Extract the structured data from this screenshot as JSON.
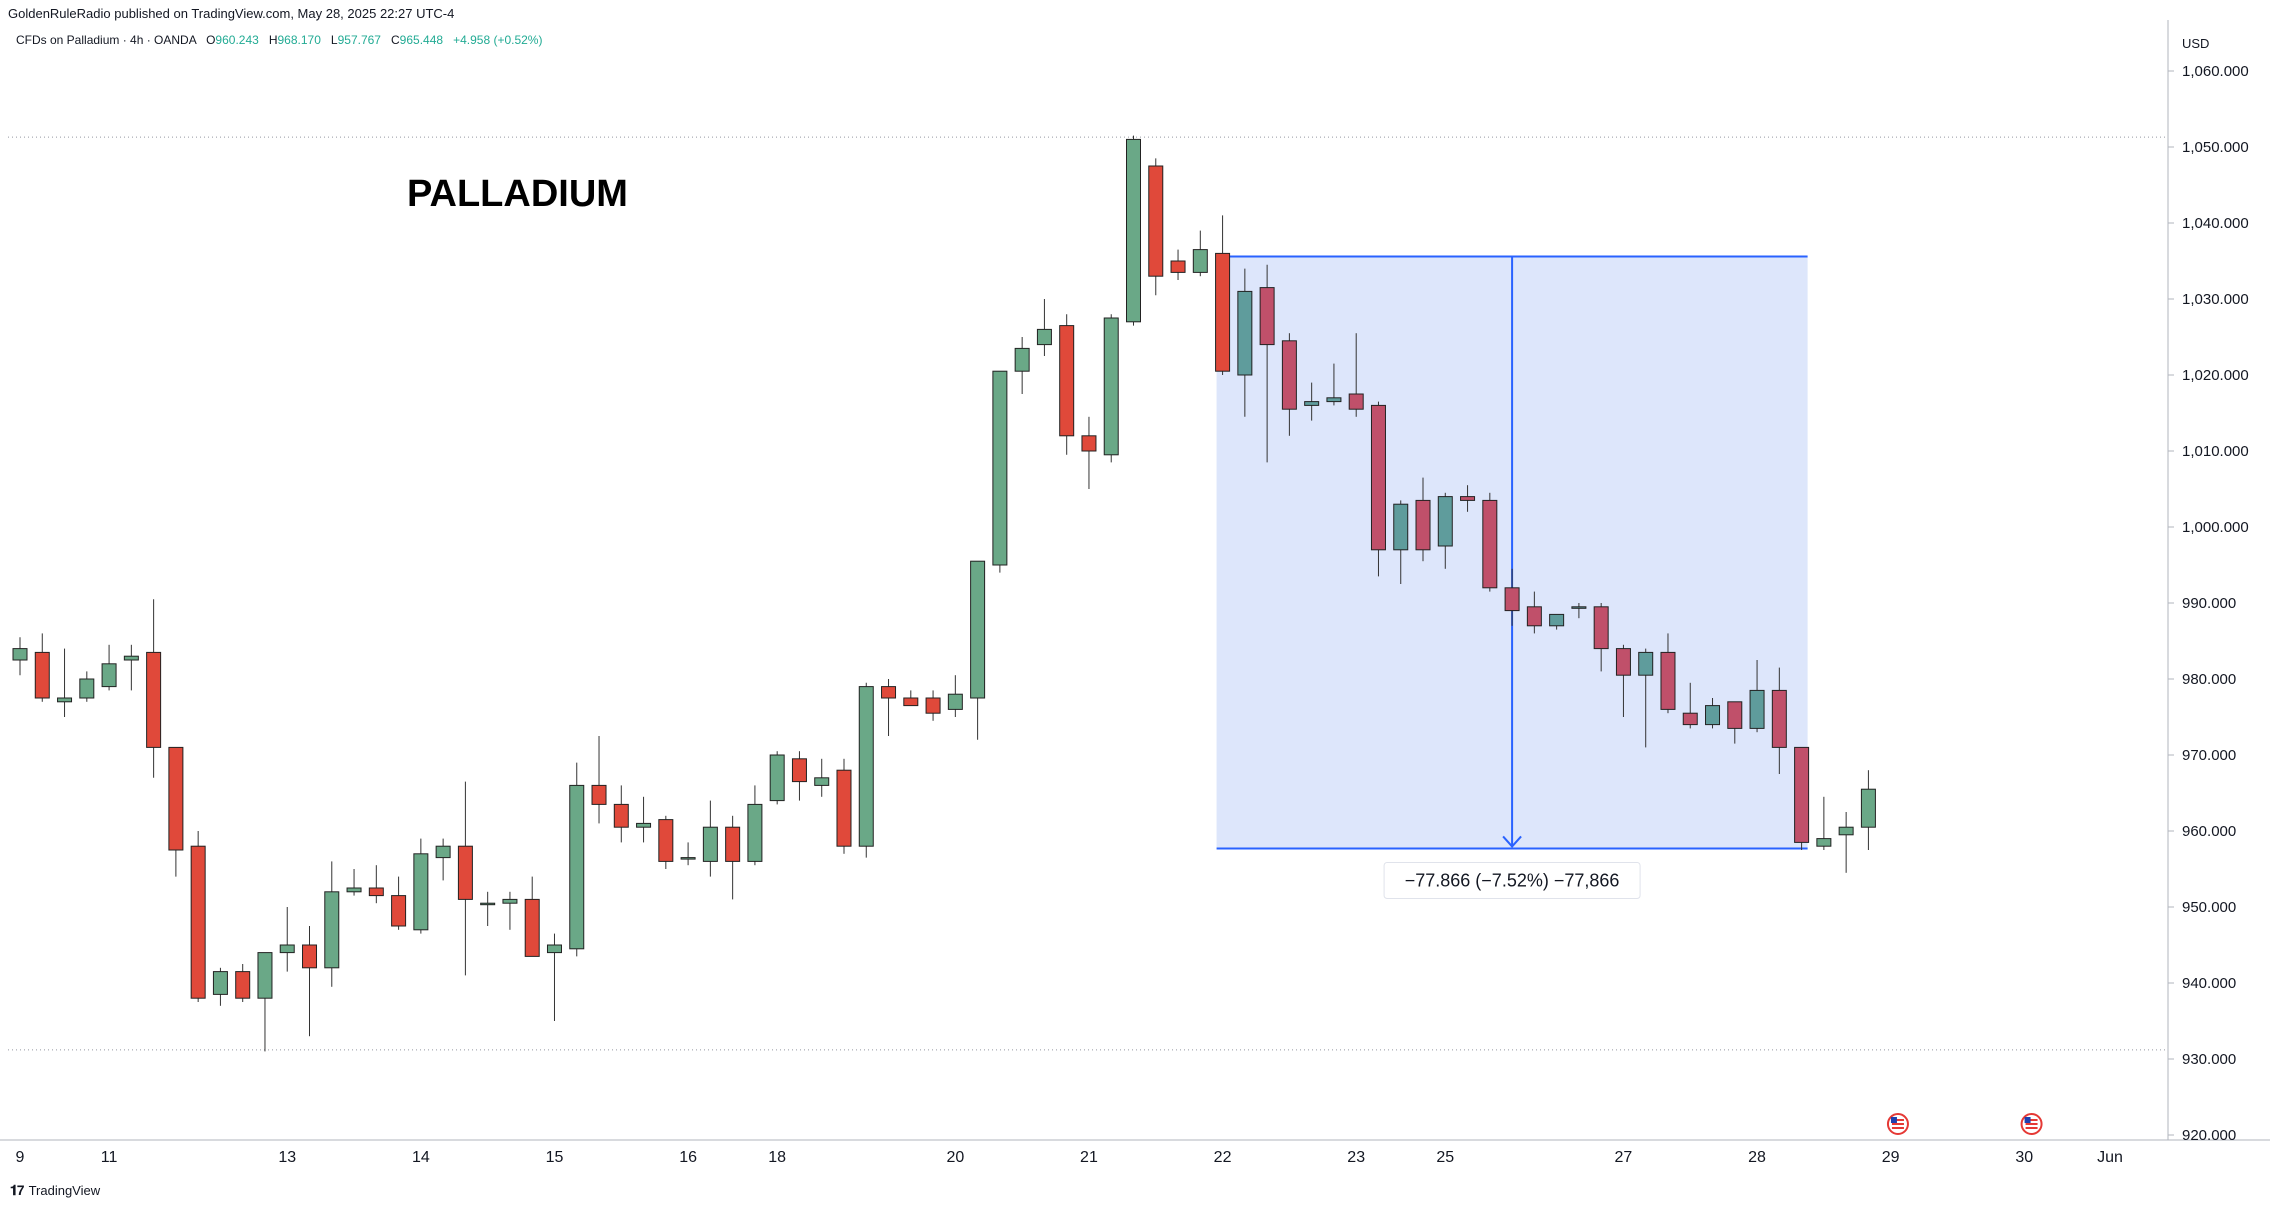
{
  "header": {
    "publisher_line": "GoldenRuleRadio published on TradingView.com, May 28, 2025 22:27 UTC-4"
  },
  "legend": {
    "symbol": "CFDs on Palladium · 4h · OANDA",
    "open_label": "O",
    "open": "960.243",
    "high_label": "H",
    "high": "968.170",
    "low_label": "L",
    "low": "957.767",
    "close_label": "C",
    "close": "965.448",
    "change": "+4.958 (+0.52%)"
  },
  "footer": {
    "logo": "𝟏7",
    "brand": "TradingView"
  },
  "colors": {
    "up": "#6aa887",
    "down": "#e0493a",
    "down_dark": "#c0506a",
    "up_teal": "#5f9c9c",
    "measure": "#2962ff",
    "measure_fill": "#dde6fb"
  },
  "chart_data": {
    "type": "candlestick",
    "title": "PALLADIUM",
    "currency": "USD",
    "ylim": [
      918.5,
      1065
    ],
    "y_ticks": [
      "1,060.000",
      "1,050.000",
      "1,040.000",
      "1,030.000",
      "1,020.000",
      "1,010.000",
      "1,000.000",
      "990.000",
      "980.000",
      "970.000",
      "960.000",
      "950.000",
      "940.000",
      "930.000",
      "920.000"
    ],
    "y_tick_values": [
      1060,
      1050,
      1040,
      1030,
      1020,
      1010,
      1000,
      990,
      980,
      970,
      960,
      950,
      940,
      930,
      920
    ],
    "x_tick_labels": [
      "9",
      "11",
      "13",
      "14",
      "15",
      "16",
      "18",
      "20",
      "21",
      "22",
      "23",
      "25",
      "27",
      "28",
      "29",
      "30",
      "Jun"
    ],
    "x_tick_bar_index": [
      0,
      4,
      12,
      18,
      24,
      30,
      34,
      42,
      48,
      54,
      60,
      64,
      72,
      78,
      84,
      90,
      96
    ],
    "horizontal_levels": [
      1051.3,
      931.2
    ],
    "candles": [
      {
        "o": 982.5,
        "h": 985.5,
        "l": 980.5,
        "c": 984.0
      },
      {
        "o": 983.5,
        "h": 986.0,
        "l": 977.0,
        "c": 977.5
      },
      {
        "o": 977.0,
        "h": 984.0,
        "l": 975.0,
        "c": 977.5
      },
      {
        "o": 977.5,
        "h": 981.0,
        "l": 977.0,
        "c": 980.0
      },
      {
        "o": 979.0,
        "h": 984.5,
        "l": 978.5,
        "c": 982.0
      },
      {
        "o": 982.5,
        "h": 984.5,
        "l": 978.5,
        "c": 983.0
      },
      {
        "o": 983.5,
        "h": 990.5,
        "l": 967.0,
        "c": 971.0
      },
      {
        "o": 971.0,
        "h": 971.0,
        "l": 954.0,
        "c": 957.5
      },
      {
        "o": 958.0,
        "h": 960.0,
        "l": 937.5,
        "c": 938.0
      },
      {
        "o": 938.5,
        "h": 942.0,
        "l": 937.0,
        "c": 941.5
      },
      {
        "o": 941.5,
        "h": 942.5,
        "l": 937.5,
        "c": 938.0
      },
      {
        "o": 938.0,
        "h": 944.0,
        "l": 931.0,
        "c": 944.0
      },
      {
        "o": 944.0,
        "h": 950.0,
        "l": 941.5,
        "c": 945.0
      },
      {
        "o": 945.0,
        "h": 947.5,
        "l": 933.0,
        "c": 942.0
      },
      {
        "o": 942.0,
        "h": 956.0,
        "l": 939.5,
        "c": 952.0
      },
      {
        "o": 952.0,
        "h": 955.0,
        "l": 951.5,
        "c": 952.5
      },
      {
        "o": 952.5,
        "h": 955.5,
        "l": 950.5,
        "c": 951.5
      },
      {
        "o": 951.5,
        "h": 954.0,
        "l": 947.0,
        "c": 947.5
      },
      {
        "o": 947.0,
        "h": 959.0,
        "l": 946.5,
        "c": 957.0
      },
      {
        "o": 956.5,
        "h": 959.0,
        "l": 953.5,
        "c": 958.0
      },
      {
        "o": 958.0,
        "h": 966.5,
        "l": 941.0,
        "c": 951.0
      },
      {
        "o": 950.5,
        "h": 952.0,
        "l": 947.5,
        "c": 950.5
      },
      {
        "o": 950.5,
        "h": 952.0,
        "l": 947.0,
        "c": 951.0
      },
      {
        "o": 951.0,
        "h": 954.0,
        "l": 943.5,
        "c": 943.5
      },
      {
        "o": 944.0,
        "h": 946.5,
        "l": 935.0,
        "c": 945.0
      },
      {
        "o": 944.5,
        "h": 969.0,
        "l": 943.5,
        "c": 966.0
      },
      {
        "o": 966.0,
        "h": 972.5,
        "l": 961.0,
        "c": 963.5
      },
      {
        "o": 963.5,
        "h": 966.0,
        "l": 958.5,
        "c": 960.5
      },
      {
        "o": 960.5,
        "h": 964.5,
        "l": 958.5,
        "c": 961.0
      },
      {
        "o": 961.5,
        "h": 962.0,
        "l": 955.0,
        "c": 956.0
      },
      {
        "o": 956.5,
        "h": 958.5,
        "l": 955.5,
        "c": 956.5
      },
      {
        "o": 956.0,
        "h": 964.0,
        "l": 954.0,
        "c": 960.5
      },
      {
        "o": 960.5,
        "h": 962.0,
        "l": 951.0,
        "c": 956.0
      },
      {
        "o": 956.0,
        "h": 966.0,
        "l": 955.5,
        "c": 963.5
      },
      {
        "o": 964.0,
        "h": 970.5,
        "l": 963.5,
        "c": 970.0
      },
      {
        "o": 969.5,
        "h": 970.5,
        "l": 964.0,
        "c": 966.5
      },
      {
        "o": 966.0,
        "h": 969.5,
        "l": 964.5,
        "c": 967.0
      },
      {
        "o": 968.0,
        "h": 969.5,
        "l": 957.0,
        "c": 958.0
      },
      {
        "o": 958.0,
        "h": 979.5,
        "l": 956.5,
        "c": 979.0
      },
      {
        "o": 979.0,
        "h": 980.0,
        "l": 972.5,
        "c": 977.5
      },
      {
        "o": 977.5,
        "h": 978.5,
        "l": 976.5,
        "c": 976.5
      },
      {
        "o": 977.5,
        "h": 978.5,
        "l": 974.5,
        "c": 975.5
      },
      {
        "o": 976.0,
        "h": 980.5,
        "l": 975.0,
        "c": 978.0
      },
      {
        "o": 977.5,
        "h": 995.0,
        "l": 972.0,
        "c": 995.5
      },
      {
        "o": 995.0,
        "h": 1019.5,
        "l": 994.0,
        "c": 1020.5
      },
      {
        "o": 1020.5,
        "h": 1025.0,
        "l": 1017.5,
        "c": 1023.5
      },
      {
        "o": 1024.0,
        "h": 1030.0,
        "l": 1022.5,
        "c": 1026.0
      },
      {
        "o": 1026.5,
        "h": 1028.0,
        "l": 1009.5,
        "c": 1012.0
      },
      {
        "o": 1012.0,
        "h": 1014.5,
        "l": 1005.0,
        "c": 1010.0
      },
      {
        "o": 1009.5,
        "h": 1028.0,
        "l": 1008.5,
        "c": 1027.5
      },
      {
        "o": 1027.0,
        "h": 1051.5,
        "l": 1026.5,
        "c": 1051.0
      },
      {
        "o": 1047.5,
        "h": 1048.5,
        "l": 1030.5,
        "c": 1033.0
      },
      {
        "o": 1035.0,
        "h": 1036.5,
        "l": 1032.5,
        "c": 1033.5
      },
      {
        "o": 1033.5,
        "h": 1039.0,
        "l": 1033.0,
        "c": 1036.5
      },
      {
        "o": 1036.0,
        "h": 1041.0,
        "l": 1020.0,
        "c": 1020.5
      },
      {
        "o": 1020.0,
        "h": 1034.0,
        "l": 1014.5,
        "c": 1031.0
      },
      {
        "o": 1031.5,
        "h": 1034.5,
        "l": 1008.5,
        "c": 1024.0
      },
      {
        "o": 1024.5,
        "h": 1025.5,
        "l": 1012.0,
        "c": 1015.5
      },
      {
        "o": 1016.0,
        "h": 1019.0,
        "l": 1014.0,
        "c": 1016.5
      },
      {
        "o": 1016.5,
        "h": 1021.5,
        "l": 1016.0,
        "c": 1017.0
      },
      {
        "o": 1017.5,
        "h": 1025.5,
        "l": 1014.5,
        "c": 1015.5
      },
      {
        "o": 1016.0,
        "h": 1016.5,
        "l": 993.5,
        "c": 997.0
      },
      {
        "o": 997.0,
        "h": 1003.5,
        "l": 992.5,
        "c": 1003.0
      },
      {
        "o": 1003.5,
        "h": 1006.5,
        "l": 995.5,
        "c": 997.0
      },
      {
        "o": 997.5,
        "h": 1004.5,
        "l": 994.5,
        "c": 1004.0
      },
      {
        "o": 1004.0,
        "h": 1005.5,
        "l": 1002.0,
        "c": 1003.5
      },
      {
        "o": 1003.5,
        "h": 1004.5,
        "l": 991.5,
        "c": 992.0
      },
      {
        "o": 992.0,
        "h": 994.5,
        "l": 987.0,
        "c": 989.0
      },
      {
        "o": 989.5,
        "h": 991.5,
        "l": 986.0,
        "c": 987.0
      },
      {
        "o": 987.0,
        "h": 988.5,
        "l": 986.5,
        "c": 988.5
      },
      {
        "o": 989.5,
        "h": 990.0,
        "l": 988.0,
        "c": 989.5
      },
      {
        "o": 989.5,
        "h": 990.0,
        "l": 981.0,
        "c": 984.0
      },
      {
        "o": 984.0,
        "h": 984.5,
        "l": 975.0,
        "c": 980.5
      },
      {
        "o": 980.5,
        "h": 984.0,
        "l": 971.0,
        "c": 983.5
      },
      {
        "o": 983.5,
        "h": 986.0,
        "l": 975.5,
        "c": 976.0
      },
      {
        "o": 975.5,
        "h": 979.5,
        "l": 973.5,
        "c": 974.0
      },
      {
        "o": 974.0,
        "h": 977.5,
        "l": 973.5,
        "c": 976.5
      },
      {
        "o": 977.0,
        "h": 977.0,
        "l": 971.5,
        "c": 973.5
      },
      {
        "o": 973.5,
        "h": 982.5,
        "l": 973.0,
        "c": 978.5
      },
      {
        "o": 978.5,
        "h": 981.5,
        "l": 967.5,
        "c": 971.0
      },
      {
        "o": 971.0,
        "h": 971.0,
        "l": 957.5,
        "c": 958.5
      },
      {
        "o": 958.0,
        "h": 964.5,
        "l": 957.5,
        "c": 959.0
      },
      {
        "o": 959.5,
        "h": 962.5,
        "l": 954.5,
        "c": 960.5
      },
      {
        "o": 960.5,
        "h": 968.0,
        "l": 957.5,
        "c": 965.5
      }
    ],
    "measure": {
      "start_bar": 54,
      "end_bar": 80,
      "from": 1035.6,
      "to": 957.7,
      "label": "−77.866 (−7.52%) −77,866"
    },
    "event_markers_bar_index": [
      85,
      91
    ]
  }
}
